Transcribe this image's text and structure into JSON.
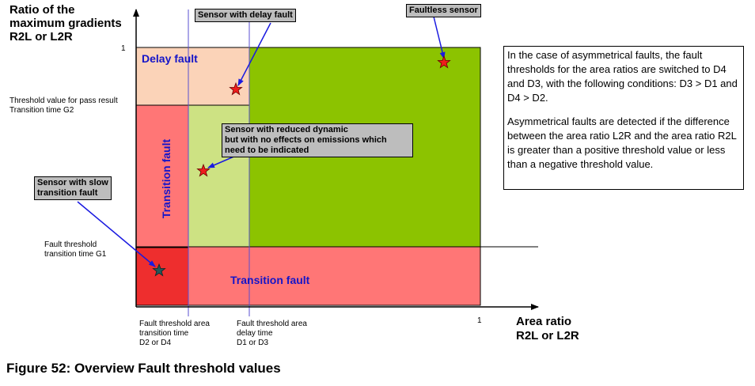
{
  "axes": {
    "y_label": [
      "Ratio of the",
      "maximum gradients",
      "R2L or L2R"
    ],
    "x_label": [
      "Area ratio",
      "R2L or L2R"
    ],
    "y_one": "1",
    "x_one": "1",
    "y_threshold_g2": [
      "Threshold value for pass result",
      "Transition time G2"
    ],
    "y_threshold_g1": [
      "Fault threshold",
      "transition time G1"
    ],
    "x_threshold_d2d4": [
      "Fault threshold area",
      "transition time",
      "D2 or D4"
    ],
    "x_threshold_d1d3": [
      "Fault threshold area",
      "delay time",
      "D1 or D3"
    ]
  },
  "regions": {
    "delay_fault": "Delay fault",
    "transition_fault_vertical": "Transition fault",
    "transition_fault_horizontal": "Transition fault"
  },
  "callouts": {
    "delay_sensor": "Sensor with delay fault",
    "faultless": "Faultless sensor",
    "reduced_dynamic": [
      "Sensor with reduced dynamic",
      "but with no effects on emissions which",
      "need to be indicated"
    ],
    "slow_transition": [
      "Sensor with slow",
      "transition fault"
    ]
  },
  "note": {
    "p1": "In the case of asymmetrical faults, the fault thresholds for the area ratios are switched to D4 and D3, with the following conditions: D3 > D1 and D4 > D2.",
    "p2": "Asymmetrical faults are detected if the difference between the area ratio L2R and the area ratio R2L is greater than a positive threshold value or less than a negative threshold value."
  },
  "caption": "Figure 52: Overview Fault threshold values",
  "colors": {
    "delay_region": "#fbd3b8",
    "transition_region": "#ff7676",
    "slow_region": "#ee2e2e",
    "reduced_region": "#cde283",
    "faultless_region": "#8cc300",
    "guide_lines": "#5a4fd0",
    "arrows": "#1a1ae0",
    "star_red": "#ee1c1c",
    "star_teal": "#23585a"
  }
}
